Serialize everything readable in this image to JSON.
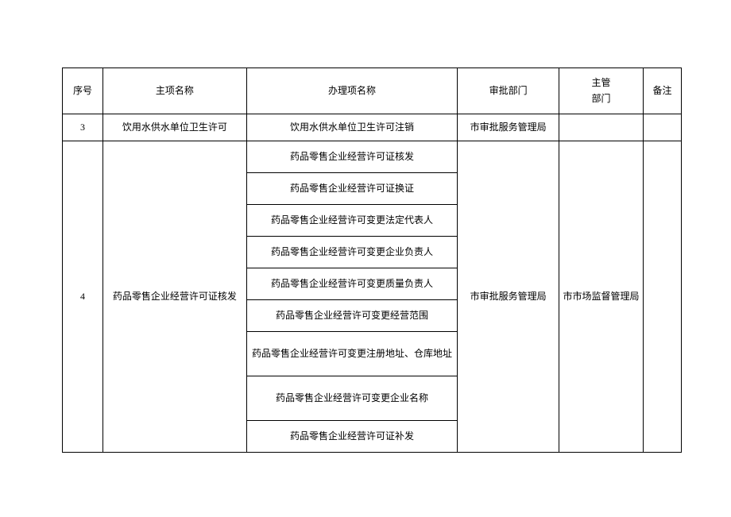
{
  "table": {
    "headers": {
      "seq": "序号",
      "main_name": "主项名称",
      "proc_name": "办理项名称",
      "approval_dept": "审批部门",
      "mgmt_dept_l1": "主管",
      "mgmt_dept_l2": "部门",
      "remark": "备注"
    },
    "row3": {
      "seq": "3",
      "main_name": "饮用水供水单位卫生许可",
      "proc_name": "饮用水供水单位卫生许可注销",
      "approval_dept": "市审批服务管理局",
      "mgmt_dept": "",
      "remark": ""
    },
    "row4": {
      "seq": "4",
      "main_name": "药品零售企业经营许可证核发",
      "approval_dept": "市审批服务管理局",
      "mgmt_dept": "市市场监督管理局",
      "remark": "",
      "subs": {
        "s1": "药品零售企业经营许可证核发",
        "s2": "药品零售企业经营许可证换证",
        "s3": "药品零售企业经营许可变更法定代表人",
        "s4": "药品零售企业经营许可变更企业负责人",
        "s5": "药品零售企业经营许可变更质量负责人",
        "s6": "药品零售企业经营许可变更经营范围",
        "s7": "药品零售企业经营许可变更注册地址、仓库地址",
        "s8": "药品零售企业经营许可变更企业名称",
        "s9": "药品零售企业经营许可证补发"
      }
    }
  }
}
